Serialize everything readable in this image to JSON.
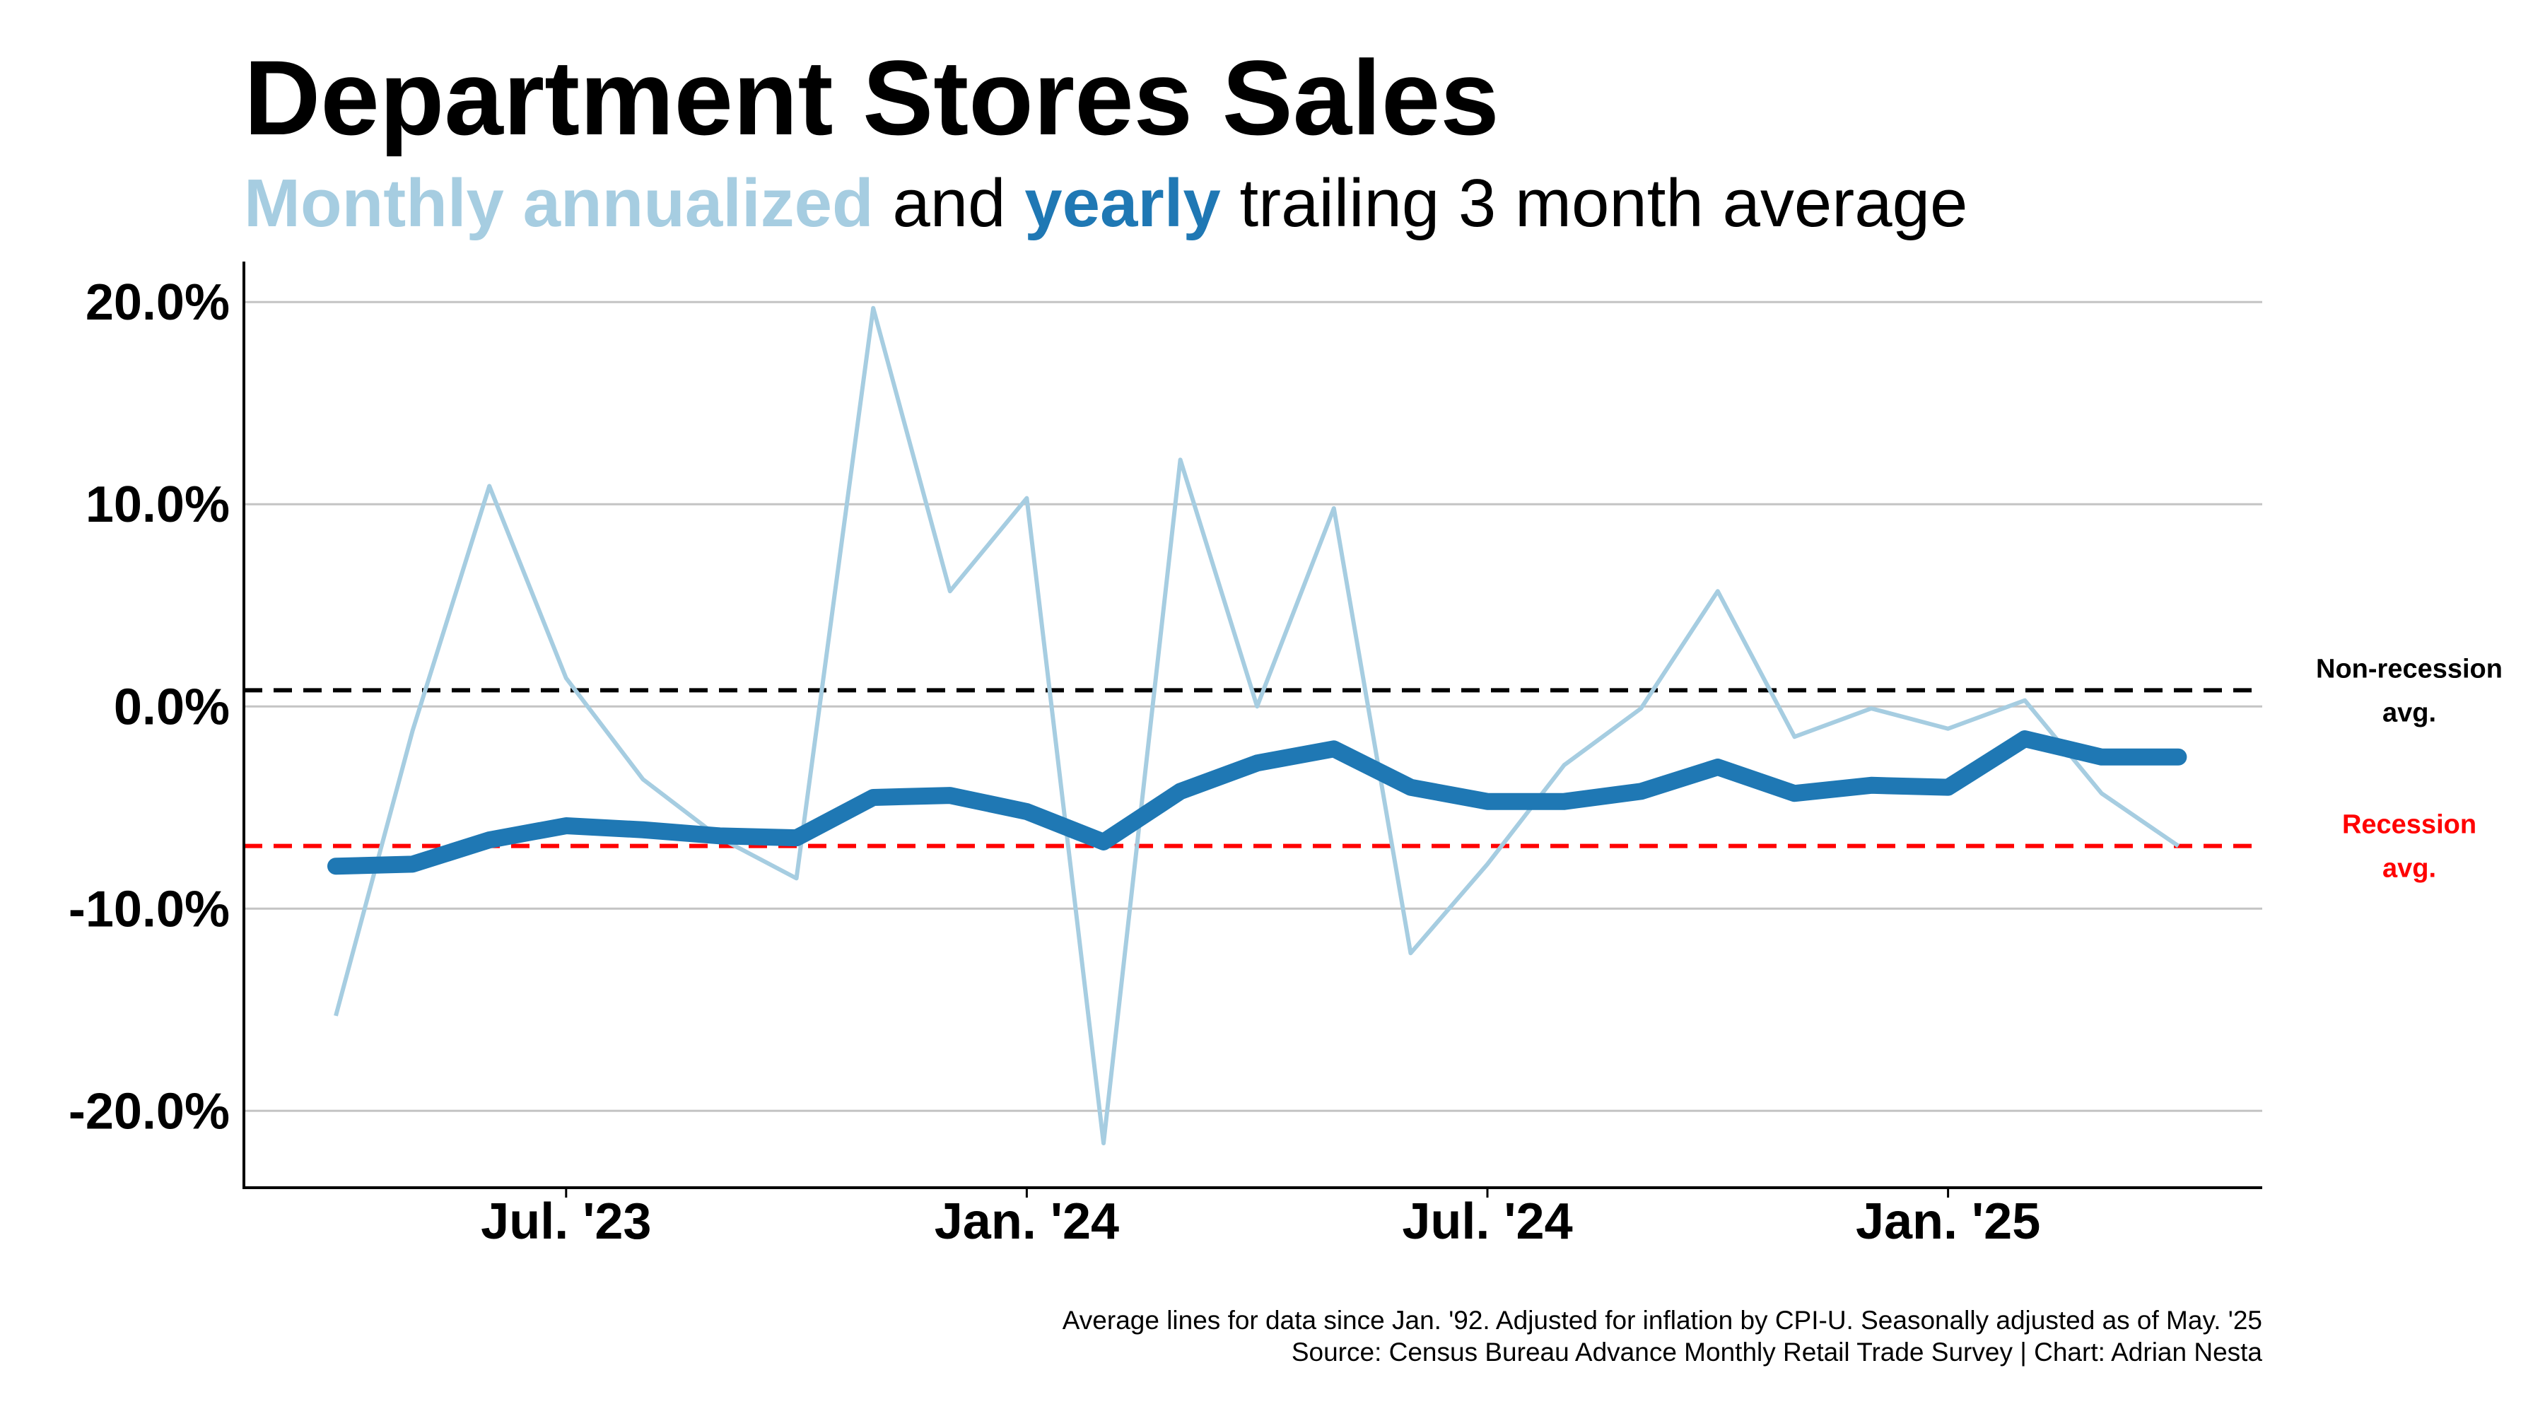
{
  "chart_data": {
    "type": "line",
    "title": "Department Stores Sales",
    "subtitle": {
      "monthly_label": "Monthly annualized",
      "and_text": " and ",
      "yearly_label": "yearly",
      "rest_text": " trailing 3 month average"
    },
    "x_start": "2023-04",
    "x_end": "2025-04",
    "x_ticks": [
      {
        "date": "2023-07",
        "label": "Jul. '23"
      },
      {
        "date": "2024-01",
        "label": "Jan. '24"
      },
      {
        "date": "2024-07",
        "label": "Jul. '24"
      },
      {
        "date": "2025-01",
        "label": "Jan. '25"
      }
    ],
    "ylim": [
      -23.8,
      22
    ],
    "y_ticks": [
      {
        "value": 20,
        "label": "20.0%"
      },
      {
        "value": 10,
        "label": "10.0%"
      },
      {
        "value": 0,
        "label": "0.0%"
      },
      {
        "value": -10,
        "label": "-10.0%"
      },
      {
        "value": -20,
        "label": "-20.0%"
      }
    ],
    "grid": true,
    "x": [
      "2023-04",
      "2023-05",
      "2023-06",
      "2023-07",
      "2023-08",
      "2023-09",
      "2023-10",
      "2023-11",
      "2023-12",
      "2024-01",
      "2024-02",
      "2024-03",
      "2024-04",
      "2024-05",
      "2024-06",
      "2024-07",
      "2024-08",
      "2024-09",
      "2024-10",
      "2024-11",
      "2024-12",
      "2025-01",
      "2025-02",
      "2025-03",
      "2025-04"
    ],
    "series": [
      {
        "name": "Monthly annualized",
        "color": "#a6cde1",
        "values": [
          -15.3,
          -1.2,
          10.9,
          1.4,
          -3.6,
          -6.5,
          -8.5,
          19.7,
          5.7,
          10.3,
          -21.6,
          12.2,
          0.0,
          9.8,
          -12.2,
          -7.8,
          -2.9,
          -0.1,
          5.7,
          -1.5,
          -0.1,
          -1.1,
          0.3,
          -4.3,
          -6.9
        ]
      },
      {
        "name": "yearly",
        "color": "#1f78b4",
        "values": [
          -7.9,
          -7.8,
          -6.6,
          -5.9,
          -6.1,
          -6.4,
          -6.5,
          -4.5,
          -4.4,
          -5.2,
          -6.7,
          -4.2,
          -2.8,
          -2.1,
          -4.0,
          -4.7,
          -4.7,
          -4.2,
          -3.0,
          -4.3,
          -3.9,
          -4.0,
          -1.6,
          -2.5,
          -2.5
        ]
      }
    ],
    "reference_lines": [
      {
        "name": "Non-recession avg.",
        "value": 0.8,
        "color": "#000000",
        "label_lines": [
          "Non-recession",
          "avg."
        ]
      },
      {
        "name": "Recession avg.",
        "value": -6.9,
        "color": "#ff0000",
        "label_lines": [
          "Recession",
          "avg."
        ]
      }
    ],
    "footnotes": [
      "Average lines for data since Jan. '92. Adjusted for inflation by CPI-U. Seasonally adjusted as of May. '25",
      "Source: Census Bureau Advance Monthly Retail Trade Survey | Chart: Adrian Nesta"
    ]
  }
}
